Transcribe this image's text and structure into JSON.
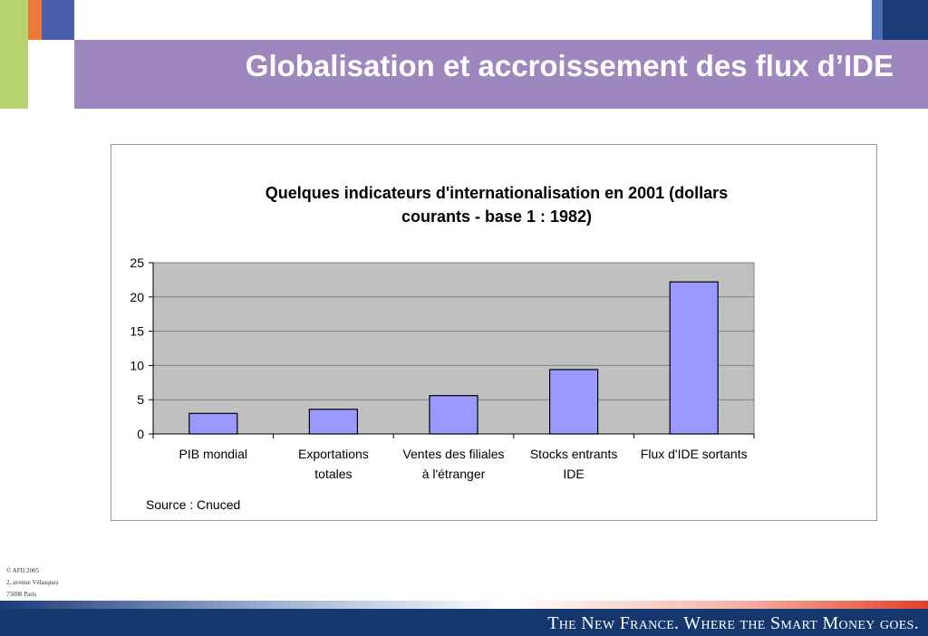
{
  "slide": {
    "title": "Globalisation et accroissement des flux d’IDE"
  },
  "chart_data": {
    "type": "bar",
    "title_line1": "Quelques indicateurs d'internationalisation en 2001 (dollars",
    "title_line2": "courants - base 1 : 1982)",
    "categories": [
      [
        "PIB mondial"
      ],
      [
        "Exportations",
        "totales"
      ],
      [
        "Ventes des filiales",
        "à l'étranger"
      ],
      [
        "Stocks entrants",
        "IDE"
      ],
      [
        "Flux d'IDE sortants"
      ]
    ],
    "values": [
      3.0,
      3.6,
      5.6,
      9.4,
      22.2
    ],
    "ylim": [
      0,
      25
    ],
    "yticks": [
      0,
      5,
      10,
      15,
      20,
      25
    ],
    "grid": true,
    "legend": "none",
    "source": "Source : Cnuced",
    "colors": {
      "bar": "#9999ff",
      "plot_background": "#c0c0c0",
      "gridline": "#808080"
    }
  },
  "footer": {
    "address": [
      "© AFII 2005",
      "2, avenue Vélasquez",
      "75008 Paris"
    ],
    "tagline": "The New France. Where the Smart Money goes."
  },
  "theme": {
    "title_band": "#9e86bf",
    "footer_bar": "#14376d",
    "accent_green": "#b5d46f",
    "accent_orange": "#ee7a37",
    "accent_blue": "#4b5fad",
    "accent_navy": "#1b3c78"
  }
}
